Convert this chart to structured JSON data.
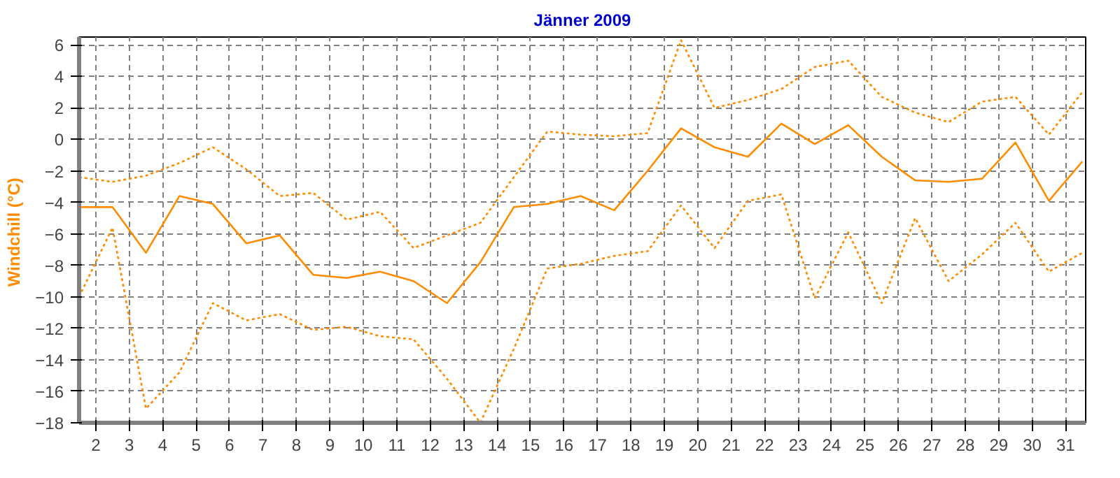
{
  "chart_data": {
    "type": "line",
    "title": "Jänner 2009",
    "ylabel": "Windchill  (°C)",
    "x": [
      1.5,
      2.5,
      3.5,
      4.5,
      5.5,
      6.5,
      7.5,
      8.5,
      9.5,
      10.5,
      11.5,
      12.5,
      13.5,
      14.5,
      15.5,
      16.5,
      17.5,
      18.5,
      19.5,
      20.5,
      21.5,
      22.5,
      23.5,
      24.5,
      25.5,
      26.5,
      27.5,
      28.5,
      29.5,
      30.5,
      31.5
    ],
    "series": [
      {
        "color": "#ff8c00",
        "line_style": "dotted",
        "values": [
          -2.4,
          -2.7,
          -2.3,
          -1.5,
          -0.5,
          -1.9,
          -3.6,
          -3.4,
          -5.1,
          -4.6,
          -6.9,
          -6.1,
          -5.3,
          -2.4,
          0.5,
          0.3,
          0.2,
          0.4,
          6.3,
          2.0,
          2.5,
          3.2,
          4.6,
          5.0,
          2.7,
          1.7,
          1.1,
          2.4,
          2.7,
          0.3,
          3.0
        ]
      },
      {
        "color": "#ff8c00",
        "line_style": "solid",
        "values": [
          -4.3,
          -4.3,
          -7.2,
          -3.6,
          -4.1,
          -6.6,
          -6.1,
          -8.6,
          -8.8,
          -8.4,
          -9.0,
          -10.4,
          -7.8,
          -4.3,
          -4.1,
          -3.6,
          -4.5,
          -2.0,
          0.7,
          -0.5,
          -1.1,
          1.0,
          -0.3,
          0.9,
          -1.1,
          -2.6,
          -2.7,
          -2.5,
          -0.2,
          -3.9,
          -1.4
        ]
      },
      {
        "color": "#ff8c00",
        "line_style": "dotted",
        "values": [
          -10.0,
          -5.6,
          -17.1,
          -14.8,
          -10.4,
          -11.5,
          -11.1,
          -12.1,
          -11.9,
          -12.5,
          -12.7,
          -15.2,
          -18.0,
          -13.3,
          -8.2,
          -7.9,
          -7.4,
          -7.1,
          -4.2,
          -6.9,
          -3.9,
          -3.5,
          -10.1,
          -5.9,
          -10.4,
          -5.0,
          -9.0,
          -7.3,
          -5.3,
          -8.4,
          -7.2
        ]
      }
    ],
    "xlim": [
      1.5,
      31.6
    ],
    "xticks": [
      2,
      3,
      4,
      5,
      6,
      7,
      8,
      9,
      10,
      11,
      12,
      13,
      14,
      15,
      16,
      17,
      18,
      19,
      20,
      21,
      22,
      23,
      24,
      25,
      26,
      27,
      28,
      29,
      30,
      31
    ],
    "ylim": [
      -18,
      6.5
    ],
    "yticks": [
      -18,
      -16,
      -14,
      -12,
      -10,
      -8,
      -6,
      -4,
      -2,
      0,
      2,
      4,
      6
    ],
    "grid": true,
    "marker": "none"
  }
}
